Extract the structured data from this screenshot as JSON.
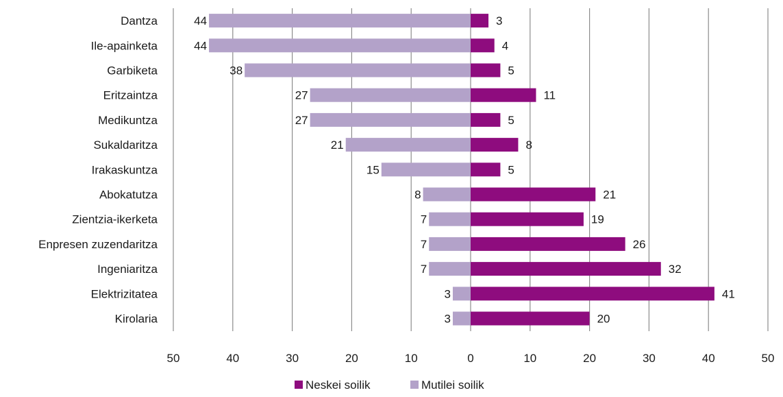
{
  "chart_data": {
    "type": "bar",
    "orientation": "horizontal-diverging",
    "title": "",
    "xlabel": "",
    "ylabel": "",
    "xlim": [
      -50,
      50
    ],
    "grid": true,
    "legend_position": "bottom",
    "categories": [
      "Dantza",
      "Ile-apainketa",
      "Garbiketa",
      "Eritzaintza",
      "Medikuntza",
      "Sukaldaritza",
      "Irakaskuntza",
      "Abokatutza",
      "Zientzia-ikerketa",
      "Enpresen zuzendaritza",
      "Ingeniaritza",
      "Elektrizitatea",
      "Kirolaria"
    ],
    "x_ticks": [
      "50",
      "40",
      "30",
      "20",
      "10",
      "0",
      "10",
      "20",
      "30",
      "40",
      "50"
    ],
    "series": [
      {
        "name": "Neskei soilik",
        "color": "#8e0c7e",
        "direction": "right",
        "values": [
          3,
          4,
          5,
          11,
          5,
          8,
          5,
          21,
          19,
          26,
          32,
          41,
          20
        ],
        "labels": [
          "3",
          "4",
          "5",
          "11",
          "5",
          "8",
          "5",
          "21",
          "19",
          "26",
          "32",
          "41",
          "20"
        ]
      },
      {
        "name": "Mutilei soilik",
        "color": "#b3a2c9",
        "direction": "left",
        "values": [
          44,
          44,
          38,
          27,
          27,
          21,
          15,
          8,
          7,
          7,
          7,
          3,
          3
        ],
        "labels": [
          "44",
          "44",
          "38",
          "27",
          "27",
          "21",
          "15",
          "8",
          "7",
          "7",
          "7",
          "3",
          "3"
        ]
      }
    ]
  }
}
